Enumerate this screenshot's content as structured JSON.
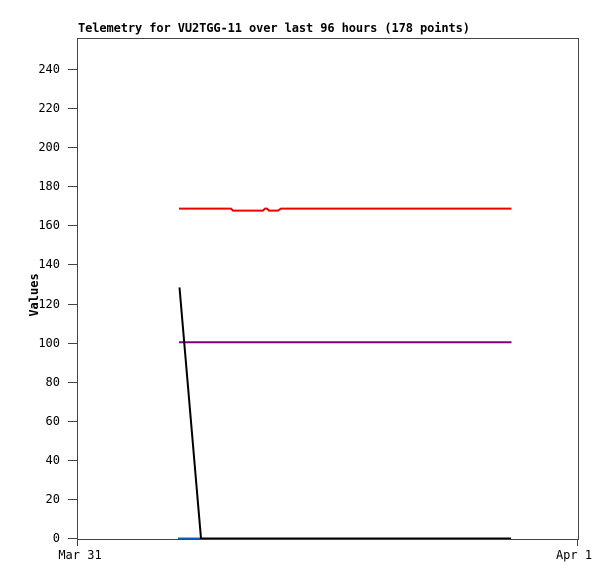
{
  "title": "Telemetry for VU2TGG-11 over last 96 hours (178 points)",
  "y_axis": {
    "label": "Values",
    "ticks": [
      0,
      20,
      40,
      60,
      80,
      100,
      120,
      140,
      160,
      180,
      200,
      220,
      240
    ]
  },
  "x_axis": {
    "tick_labels": [
      "Mar 31",
      "Apr 1"
    ]
  },
  "colors": {
    "series_red": "#ee0000",
    "series_purple": "#800080",
    "series_black": "#000000",
    "series_blue": "#0e62c8",
    "axis": "#444444",
    "text": "#000000",
    "background": "#ffffff"
  },
  "chart_data": {
    "type": "line",
    "title": "Telemetry for VU2TGG-11 over last 96 hours (178 points)",
    "xlabel": "",
    "ylabel": "Values",
    "ylim": [
      0,
      256
    ],
    "grid": false,
    "legend": "none",
    "x_unit": "fraction of axis span (0 = Mar 31 tick, 1 = Apr 1 tick)",
    "x_tick_labels": [
      "Mar 31",
      "Apr 1"
    ],
    "points_count": 178,
    "series": [
      {
        "name": "red-channel",
        "color": "#ee0000",
        "points": [
          [
            0.202,
            168.8
          ],
          [
            0.306,
            168.8
          ],
          [
            0.31,
            167.8
          ],
          [
            0.37,
            167.8
          ],
          [
            0.374,
            168.8
          ],
          [
            0.378,
            168.8
          ],
          [
            0.382,
            167.8
          ],
          [
            0.4,
            167.8
          ],
          [
            0.406,
            168.8
          ],
          [
            0.867,
            168.8
          ]
        ]
      },
      {
        "name": "purple-channel",
        "color": "#800080",
        "points": [
          [
            0.202,
            100.4
          ],
          [
            0.867,
            100.4
          ]
        ]
      },
      {
        "name": "blue-channel",
        "color": "#0e62c8",
        "points": [
          [
            0.2,
            0
          ],
          [
            0.246,
            0
          ]
        ]
      },
      {
        "name": "black-channel",
        "color": "#000000",
        "points": [
          [
            0.203,
            128.5
          ],
          [
            0.246,
            0
          ],
          [
            0.866,
            0
          ]
        ]
      }
    ]
  }
}
